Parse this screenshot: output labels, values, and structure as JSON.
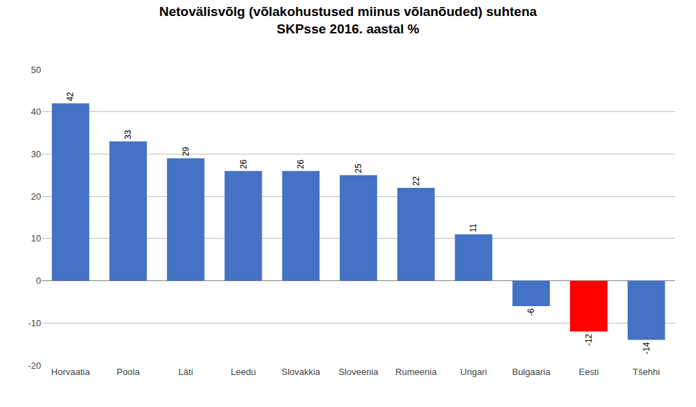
{
  "chart_data": {
    "type": "bar",
    "title": "Netovälisvõlg (võlakohustused miinus võlanõuded) suhtena\nSKPsse 2016. aastal %",
    "categories": [
      "Horvaatia",
      "Poola",
      "Läti",
      "Leedu",
      "Slovakkia",
      "Sloveenia",
      "Rumeenia",
      "Ungari",
      "Bulgaaria",
      "Eesti",
      "Tšehhi"
    ],
    "values": [
      42,
      33,
      29,
      26,
      26,
      25,
      22,
      11,
      -6,
      -12,
      -14
    ],
    "colors": [
      "#4472c4",
      "#4472c4",
      "#4472c4",
      "#4472c4",
      "#4472c4",
      "#4472c4",
      "#4472c4",
      "#4472c4",
      "#4472c4",
      "#ff0000",
      "#4472c4"
    ],
    "ylim": [
      -20,
      50
    ],
    "yticks": [
      -20,
      -10,
      0,
      10,
      20,
      30,
      40,
      50
    ],
    "grid": true,
    "data_labels": true
  }
}
